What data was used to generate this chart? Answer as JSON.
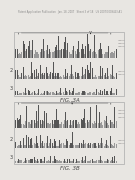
{
  "background_color": "#e8e6e2",
  "header_text": "Patent Application Publication   Jan. 18, 2007   Sheet 3 of 18   US 2007/0009463 A1",
  "header_fontsize": 1.8,
  "fig3a_label": "FIG. 3A",
  "fig3b_label": "FIG. 3B",
  "panel_bg": "#ffffff",
  "bar_color": "#999999",
  "bar_color_tall": "#555555",
  "n_bars": 120,
  "border_color": "#aaaaaa",
  "text_color": "#444444",
  "arrow_color": "#555555",
  "label_color": "#555555"
}
